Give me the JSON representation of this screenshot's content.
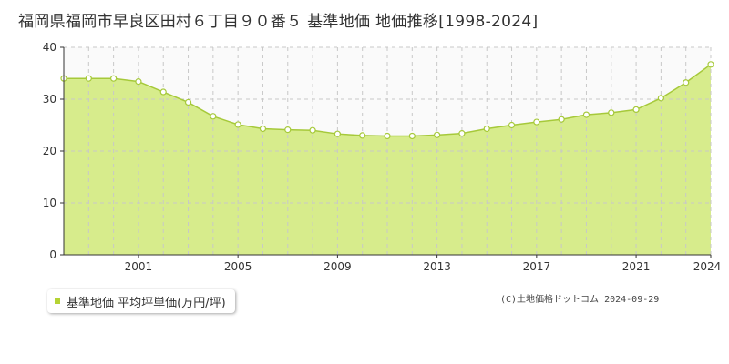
{
  "title": "福岡県福岡市早良区田村６丁目９０番５ 基準地価 地価推移[1998-2024]",
  "legend_label": "基準地価 平均坪単価(万円/坪)",
  "copyright": "(C)土地価格ドットコム 2024-09-29",
  "colors": {
    "area_fill": "#d7ec8c",
    "line": "#a6c93a",
    "marker_fill": "#ffffff",
    "marker_stroke": "#a6c93a",
    "legend_swatch": "#b5d334"
  },
  "chart_data": {
    "type": "area",
    "title": "",
    "xlabel": "",
    "ylabel": "",
    "x": [
      1998,
      1999,
      2000,
      2001,
      2002,
      2003,
      2004,
      2005,
      2006,
      2007,
      2008,
      2009,
      2010,
      2011,
      2012,
      2013,
      2014,
      2015,
      2016,
      2017,
      2018,
      2019,
      2020,
      2021,
      2022,
      2023,
      2024
    ],
    "series": [
      {
        "values": [
          34,
          34,
          34,
          33.4,
          31.4,
          29.4,
          26.7,
          25.1,
          24.3,
          24.1,
          24.0,
          23.3,
          23.0,
          22.9,
          22.9,
          23.1,
          23.4,
          24.3,
          25.0,
          25.6,
          26.1,
          27.0,
          27.4,
          28.0,
          30.2,
          33.2,
          36.7
        ]
      }
    ],
    "xlim": [
      1998,
      2024
    ],
    "ylim": [
      0,
      40
    ],
    "x_tick_labels": [
      "2001",
      "2005",
      "2009",
      "2013",
      "2017",
      "2021",
      "2024"
    ],
    "y_tick_labels": [
      "0",
      "10",
      "20",
      "30",
      "40"
    ],
    "grid": true,
    "legend_position": "bottom-left"
  }
}
